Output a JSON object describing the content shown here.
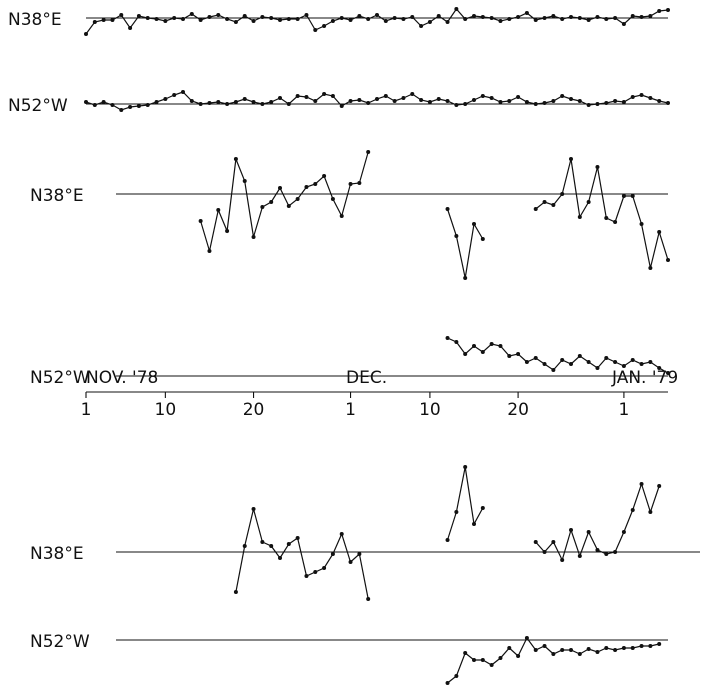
{
  "chart_data": {
    "type": "line",
    "month_labels": [
      "NOV. '78",
      "DEC.",
      "JAN. '79"
    ],
    "x": [
      1,
      2,
      3,
      4,
      5,
      6,
      7,
      8,
      9,
      10,
      11,
      12,
      13,
      14,
      15,
      16,
      17,
      18,
      19,
      20,
      21,
      22,
      23,
      24,
      25,
      26,
      27,
      28,
      29,
      30,
      31,
      32,
      33,
      34,
      35,
      36,
      37,
      38,
      39,
      40,
      41,
      42,
      43,
      44,
      45,
      46,
      47,
      48,
      49,
      50,
      51,
      52,
      53,
      54,
      55,
      56,
      57,
      58,
      59,
      60,
      61,
      62,
      63,
      64,
      65,
      66,
      67
    ],
    "xlim": [
      1,
      67
    ],
    "xticks": [
      {
        "value": 1,
        "label": "1"
      },
      {
        "value": 10,
        "label": "10"
      },
      {
        "value": 20,
        "label": "20"
      },
      {
        "value": 31,
        "label": "1"
      },
      {
        "value": 40,
        "label": "10"
      },
      {
        "value": 50,
        "label": "20"
      },
      {
        "value": 62,
        "label": "1"
      }
    ],
    "series": [
      {
        "name": "N38°E",
        "color": "#111111",
        "values": [
          -16,
          -4,
          -2,
          -2,
          3,
          -10,
          2,
          0,
          -1,
          -3,
          0,
          -1,
          4,
          -2,
          1,
          3,
          -1,
          -4,
          2,
          -3,
          1,
          0,
          -2,
          -1,
          -1,
          3,
          -12,
          -8,
          -3,
          0,
          -2,
          2,
          -1,
          3,
          -3,
          0,
          -1,
          1,
          -8,
          -4,
          2,
          -4,
          9,
          -1,
          2,
          1,
          0,
          -3,
          -1,
          1,
          5,
          -2,
          0,
          2,
          -1,
          1,
          0,
          -2,
          1,
          -1,
          0,
          -6,
          2,
          1,
          2,
          7,
          8
        ]
      },
      {
        "name": "N52°W",
        "color": "#111111",
        "values": [
          2,
          -1,
          2,
          -1,
          -6,
          -3,
          -2,
          -1,
          2,
          5,
          9,
          12,
          3,
          0,
          1,
          2,
          0,
          2,
          5,
          2,
          0,
          2,
          6,
          0,
          8,
          7,
          3,
          10,
          8,
          -2,
          3,
          4,
          1,
          5,
          8,
          3,
          6,
          10,
          4,
          2,
          5,
          3,
          -1,
          0,
          4,
          8,
          6,
          2,
          3,
          7,
          2,
          0,
          1,
          3,
          8,
          5,
          3,
          -1,
          0,
          1,
          3,
          2,
          7,
          9,
          6,
          3,
          1
        ]
      },
      {
        "name": "N38°E",
        "color": "#111111",
        "values": [
          null,
          null,
          null,
          null,
          null,
          null,
          null,
          null,
          null,
          null,
          null,
          null,
          null,
          -27,
          -57,
          -16,
          -37,
          35,
          13,
          -43,
          -13,
          -8,
          6,
          -12,
          -5,
          7,
          10,
          18,
          -5,
          -22,
          10,
          11,
          42,
          null,
          null,
          null,
          null,
          null,
          null,
          null,
          null,
          -15,
          -42,
          -84,
          -30,
          -45,
          null,
          null,
          null,
          null,
          null,
          -15,
          -8,
          -11,
          0,
          35,
          -23,
          -8,
          27,
          -24,
          -28,
          -2,
          -2,
          -30,
          -74,
          -38,
          -66
        ]
      },
      {
        "name": "N52°W",
        "color": "#111111",
        "values": [
          null,
          null,
          null,
          null,
          null,
          null,
          null,
          null,
          null,
          null,
          null,
          null,
          null,
          null,
          null,
          null,
          null,
          null,
          null,
          null,
          null,
          null,
          null,
          null,
          null,
          null,
          null,
          null,
          null,
          null,
          null,
          null,
          null,
          null,
          null,
          null,
          null,
          null,
          null,
          null,
          null,
          38,
          34,
          22,
          30,
          24,
          32,
          30,
          20,
          22,
          14,
          18,
          12,
          6,
          16,
          12,
          20,
          14,
          8,
          18,
          14,
          10,
          16,
          12,
          14,
          8,
          3
        ]
      },
      {
        "name": "N38°E",
        "color": "#111111",
        "values": [
          null,
          null,
          null,
          null,
          null,
          null,
          null,
          null,
          null,
          null,
          null,
          null,
          null,
          null,
          null,
          null,
          null,
          -40,
          6,
          43,
          10,
          6,
          -6,
          8,
          14,
          -24,
          -20,
          -16,
          -2,
          18,
          -10,
          -2,
          -47,
          null,
          null,
          null,
          null,
          null,
          null,
          null,
          null,
          12,
          40,
          85,
          28,
          44,
          null,
          null,
          null,
          null,
          null,
          10,
          0,
          10,
          -8,
          22,
          -4,
          20,
          2,
          -2,
          0,
          20,
          42,
          68,
          40,
          66,
          null
        ]
      },
      {
        "name": "N52°W",
        "color": "#111111",
        "values": [
          null,
          null,
          null,
          null,
          null,
          null,
          null,
          null,
          null,
          null,
          null,
          null,
          null,
          null,
          null,
          null,
          null,
          null,
          null,
          null,
          null,
          null,
          null,
          null,
          null,
          null,
          null,
          null,
          null,
          null,
          null,
          null,
          null,
          null,
          null,
          null,
          null,
          null,
          null,
          null,
          null,
          -43,
          -36,
          -13,
          -20,
          -20,
          -25,
          -18,
          -8,
          -16,
          2,
          -10,
          -6,
          -14,
          -10,
          -10,
          -14,
          -9,
          -12,
          -8,
          -10,
          -8,
          -8,
          -6,
          -6,
          -4,
          null
        ]
      }
    ]
  }
}
